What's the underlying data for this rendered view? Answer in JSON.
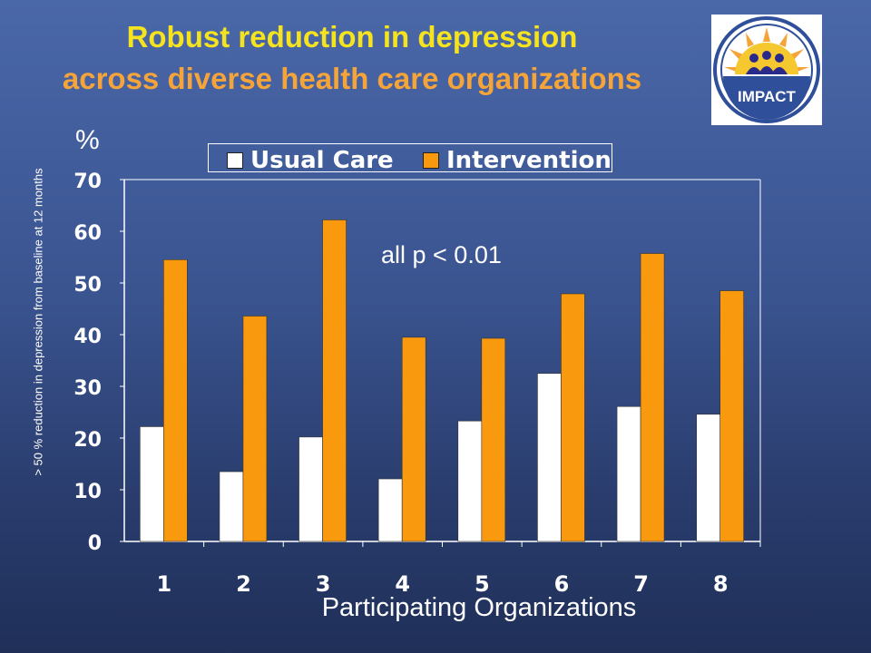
{
  "slide": {
    "title_line1": "Robust reduction in depression",
    "title_line2": "across diverse health care organizations",
    "logo_text": "IMPACT"
  },
  "chart_data": {
    "type": "bar",
    "categories": [
      "1",
      "2",
      "3",
      "4",
      "5",
      "6",
      "7",
      "8"
    ],
    "series": [
      {
        "name": "Usual Care",
        "color": "#ffffff",
        "values": [
          22.2,
          13.5,
          20.2,
          12.1,
          23.3,
          32.5,
          26.1,
          24.6
        ]
      },
      {
        "name": "Intervention",
        "color": "#f9990e",
        "values": [
          54.5,
          43.6,
          62.2,
          39.5,
          39.3,
          47.9,
          55.7,
          48.5
        ]
      }
    ],
    "ylim": [
      0,
      70
    ],
    "yticks": [
      "0",
      "10",
      "20",
      "30",
      "40",
      "50",
      "60",
      "70"
    ],
    "ylabel": "> 50 % reduction in depression from baseline at 12 months",
    "y_unit": "%",
    "xlabel": "Participating Organizations",
    "annotation": "all p < 0.01",
    "legend_position": "top",
    "grid": false
  }
}
